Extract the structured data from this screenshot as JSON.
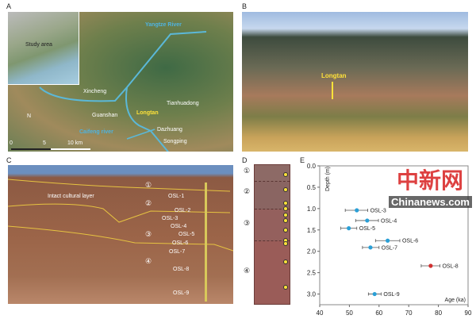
{
  "panels": {
    "a": {
      "label": "A",
      "inset_label": "Study area",
      "river1": "Yangtze River",
      "river2": "Caifeng river",
      "sites": [
        "Xincheng",
        "Tianhuadong",
        "Guanshan",
        "Longtan",
        "Dazhuang",
        "Songping"
      ],
      "scale": [
        "0",
        "5",
        "10 km"
      ],
      "north": "N"
    },
    "b": {
      "label": "B",
      "site": "Longtan"
    },
    "c": {
      "label": "C",
      "layer_note": "Intact cultural layer",
      "layers": [
        "①",
        "②",
        "③",
        "④"
      ],
      "samples": [
        "OSL-1",
        "OSL-2",
        "OSL-3",
        "OSL-4",
        "OSL-5",
        "OSL-6",
        "OSL-7",
        "OSL-8",
        "OSL-9"
      ]
    },
    "d": {
      "label": "D",
      "layers": [
        "①",
        "②",
        "③",
        "④"
      ]
    },
    "e": {
      "label": "E"
    }
  },
  "chart_data": {
    "type": "scatter",
    "xlabel": "Age (ka)",
    "ylabel": "Depth (m)",
    "xlim": [
      40,
      90
    ],
    "ylim": [
      0,
      3.25
    ],
    "y_inverted": true,
    "xticks": [
      40,
      50,
      60,
      70,
      80,
      90
    ],
    "yticks": [
      "0.0",
      "0.5",
      "1.0",
      "1.5",
      "2.0",
      "2.5",
      "3.0"
    ],
    "points": [
      {
        "label": "OSL-3",
        "age": 52.5,
        "err_low": 48.6,
        "err_high": 56.2,
        "depth": 1.04,
        "color": "#2a9fd6"
      },
      {
        "label": "OSL-4",
        "age": 56,
        "err_low": 52.1,
        "err_high": 59.8,
        "depth": 1.28,
        "color": "#2a9fd6"
      },
      {
        "label": "OSL-5",
        "age": 49.8,
        "err_low": 47.1,
        "err_high": 52.5,
        "depth": 1.46,
        "color": "#2a9fd6"
      },
      {
        "label": "OSL-6",
        "age": 62.9,
        "err_low": 58.8,
        "err_high": 67,
        "depth": 1.75,
        "color": "#2a9fd6"
      },
      {
        "label": "OSL-7",
        "age": 57.1,
        "err_low": 54.4,
        "err_high": 60,
        "depth": 1.91,
        "color": "#2a9fd6"
      },
      {
        "label": "OSL-8",
        "age": 77.4,
        "err_low": 74.2,
        "err_high": 80.5,
        "depth": 2.34,
        "color": "#d03030"
      },
      {
        "label": "OSL-9",
        "age": 58.5,
        "err_low": 56.4,
        "err_high": 60.7,
        "depth": 3.0,
        "color": "#2a9fd6"
      }
    ]
  },
  "watermark": {
    "logo": "中新网",
    "site": "Chinanews.com"
  }
}
